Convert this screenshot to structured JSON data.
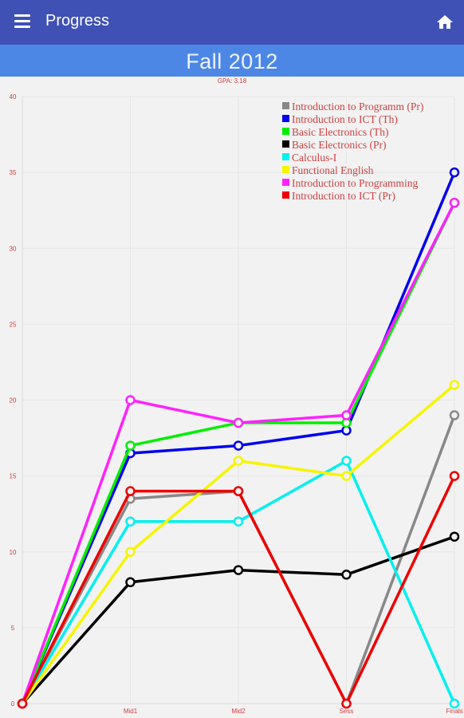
{
  "appbar": {
    "title": "Progress",
    "menu_icon": "hamburger-menu-icon",
    "home_icon": "home-icon"
  },
  "semester": {
    "title": "Fall 2012"
  },
  "gpa": {
    "text": "GPA: 3.18"
  },
  "colors": {
    "appbar": "#3f51b5",
    "semester_bar": "#4d87e6",
    "axis_label": "#d04040",
    "legend_text": "#d04040"
  },
  "chart_data": {
    "type": "line",
    "categories": [
      "",
      "Mid1",
      "Mid2",
      "Sess",
      "Finals"
    ],
    "ylim": [
      0,
      40
    ],
    "yticks": [
      0,
      5,
      10,
      15,
      20,
      25,
      30,
      35,
      40
    ],
    "grid": true,
    "legend_position": "top-right",
    "series": [
      {
        "name": "Introduction to Programm (Pr)",
        "color": "#888888",
        "values": [
          0,
          13.5,
          14,
          0,
          19
        ]
      },
      {
        "name": "Introduction to ICT (Th)",
        "color": "#0000ee",
        "values": [
          0,
          16.5,
          17,
          18,
          35
        ]
      },
      {
        "name": "Basic Electronics (Th)",
        "color": "#00ee00",
        "values": [
          0,
          17,
          18.5,
          18.5,
          33
        ]
      },
      {
        "name": "Basic Electronics (Pr)",
        "color": "#000000",
        "values": [
          0,
          8,
          8.8,
          8.5,
          11
        ]
      },
      {
        "name": "Calculus-I",
        "color": "#00f0f0",
        "values": [
          0,
          12,
          12,
          16,
          0
        ]
      },
      {
        "name": "Functional English",
        "color": "#f5f500",
        "values": [
          0,
          10,
          16,
          15,
          21
        ]
      },
      {
        "name": "Introduction to Programming",
        "color": "#ff22ff",
        "values": [
          0,
          20,
          18.5,
          19,
          33
        ]
      },
      {
        "name": "Introduction to ICT (Pr)",
        "color": "#ee0000",
        "values": [
          0,
          14,
          14,
          0,
          15
        ]
      }
    ]
  }
}
